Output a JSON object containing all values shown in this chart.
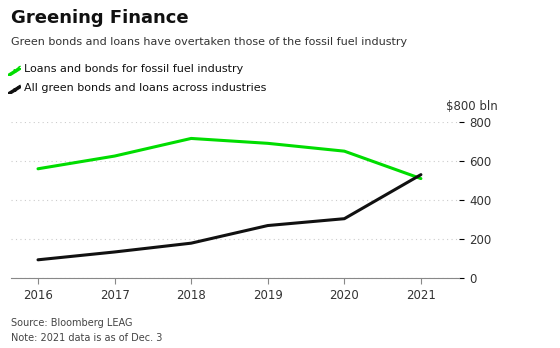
{
  "title": "Greening Finance",
  "subtitle": "Green bonds and loans have overtaken those of the fossil fuel industry",
  "legend_fossil": "Loans and bonds for fossil fuel industry",
  "legend_green": "All green bonds and loans across industries",
  "ylabel_label": "$800 bln",
  "source": "Source: Bloomberg LEAG",
  "note": "Note: 2021 data is as of Dec. 3",
  "years": [
    2016,
    2017,
    2018,
    2019,
    2020,
    2021
  ],
  "fossil_values": [
    560,
    625,
    715,
    690,
    650,
    510
  ],
  "green_values": [
    95,
    135,
    180,
    270,
    305,
    530
  ],
  "fossil_color": "#00dd00",
  "green_color": "#111111",
  "background_color": "#ffffff",
  "ylim": [
    0,
    800
  ],
  "yticks": [
    0,
    200,
    400,
    600,
    800
  ],
  "grid_color": "#cccccc",
  "linewidth": 2.2,
  "title_fontsize": 13,
  "subtitle_fontsize": 8,
  "legend_fontsize": 8,
  "tick_fontsize": 8.5,
  "source_fontsize": 7
}
